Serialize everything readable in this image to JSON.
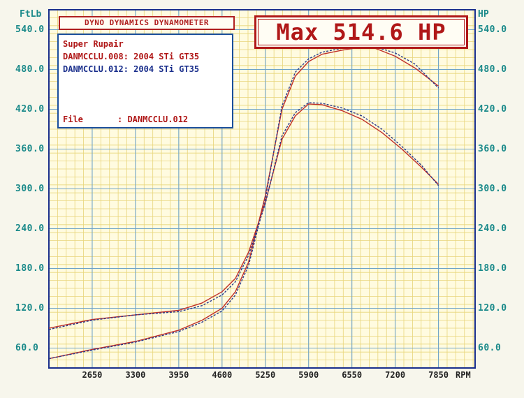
{
  "header": {
    "title": "DYNO DYNAMICS DYNAMOMETER",
    "max_readout": "Max 514.6 HP"
  },
  "legend": {
    "customer": "Super Rupair",
    "run_1": "DANMCCLU.008: 2004 STi GT35",
    "run_2": "DANMCCLU.012: 2004 STi GT35",
    "file_label": "File",
    "file_value": ": DANMCCLU.012"
  },
  "colors": {
    "run_1": "#c0302a",
    "run_2": "#2a3a8c",
    "grid_major": "#6fa3c8",
    "grid_minor": "#e8d57a",
    "axis_text": "#1b8a8a",
    "plot_bg": "#fffbe0"
  },
  "chart_data": {
    "type": "line",
    "x_label": "RPM",
    "y_left_label": "FtLb",
    "y_right_label": "HP",
    "x_range": [
      2000,
      8400
    ],
    "y_range": [
      30,
      570
    ],
    "x_ticks": [
      "2650",
      "3300",
      "3950",
      "4600",
      "5250",
      "5900",
      "6550",
      "7200",
      "7850"
    ],
    "y_ticks": [
      "60.0",
      "120.0",
      "180.0",
      "240.0",
      "300.0",
      "360.0",
      "420.0",
      "480.0",
      "540.0"
    ],
    "grid": true,
    "series": [
      {
        "name": "DANMCCLU.008: 2004 STi GT35",
        "kind": "hp",
        "color_key": "run_1",
        "x": [
          2000,
          2650,
          3300,
          3950,
          4300,
          4600,
          4800,
          5000,
          5250,
          5500,
          5700,
          5900,
          6100,
          6400,
          6700,
          6900,
          7200,
          7500,
          7850
        ],
        "y": [
          44,
          58,
          70,
          87,
          102,
          120,
          145,
          190,
          290,
          420,
          470,
          492,
          503,
          509,
          514,
          512,
          500,
          482,
          455
        ]
      },
      {
        "name": "DANMCCLU.012: 2004 STi GT35",
        "kind": "hp",
        "color_key": "run_2",
        "x": [
          2000,
          2650,
          3300,
          3950,
          4300,
          4600,
          4800,
          5000,
          5250,
          5500,
          5700,
          5900,
          6100,
          6400,
          6700,
          6900,
          7200,
          7500,
          7850
        ],
        "y": [
          44,
          57,
          69,
          85,
          99,
          116,
          140,
          185,
          285,
          425,
          476,
          496,
          506,
          512,
          514.6,
          514,
          505,
          488,
          452
        ]
      },
      {
        "name": "DANMCCLU.008: 2004 STi GT35",
        "kind": "torque",
        "color_key": "run_1",
        "x": [
          2000,
          2650,
          3300,
          3950,
          4300,
          4600,
          4800,
          5000,
          5250,
          5500,
          5700,
          5900,
          6100,
          6400,
          6700,
          7000,
          7300,
          7600,
          7850
        ],
        "y": [
          90,
          103,
          110,
          117,
          128,
          145,
          165,
          205,
          280,
          375,
          410,
          428,
          427,
          418,
          405,
          385,
          360,
          332,
          307
        ]
      },
      {
        "name": "DANMCCLU.012: 2004 STi GT35",
        "kind": "torque",
        "color_key": "run_2",
        "x": [
          2000,
          2650,
          3300,
          3950,
          4300,
          4600,
          4800,
          5000,
          5250,
          5500,
          5700,
          5900,
          6100,
          6400,
          6700,
          7000,
          7300,
          7600,
          7850
        ],
        "y": [
          88,
          102,
          110,
          115,
          124,
          140,
          160,
          200,
          278,
          380,
          415,
          430,
          429,
          422,
          410,
          390,
          364,
          335,
          305
        ]
      }
    ]
  }
}
